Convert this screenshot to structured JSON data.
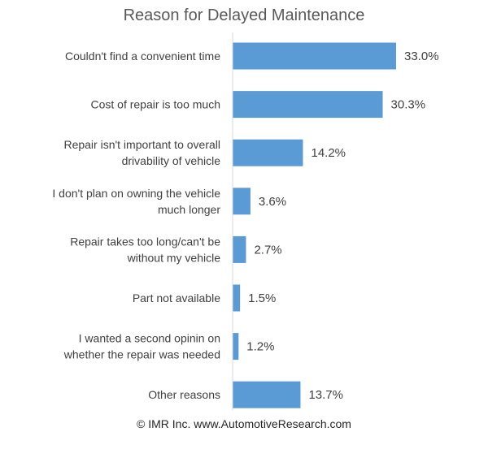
{
  "chart_data": {
    "type": "bar",
    "orientation": "horizontal",
    "title": "Reason for Delayed Maintenance",
    "categories": [
      "Couldn't find a convenient time",
      "Cost of repair is too much",
      "Repair isn't important to overall drivability of vehicle",
      "I don't plan on owning the vehicle much longer",
      "Repair takes too long/can't be without my vehicle",
      "Part not available",
      "I wanted a second opinin on whether the repair was needed",
      "Other reasons"
    ],
    "category_lines": [
      [
        "Couldn't find a convenient time"
      ],
      [
        "Cost of repair is too much"
      ],
      [
        "Repair isn't important to overall",
        "drivability of vehicle"
      ],
      [
        "I don't plan on owning the vehicle",
        "much longer"
      ],
      [
        "Repair takes too long/can't be",
        "without my vehicle"
      ],
      [
        "Part not available"
      ],
      [
        "I wanted a second opinin on",
        "whether the repair was needed"
      ],
      [
        "Other reasons"
      ]
    ],
    "values": [
      33.0,
      30.3,
      14.2,
      3.6,
      2.7,
      1.5,
      1.2,
      13.7
    ],
    "value_labels": [
      "33.0%",
      "30.3%",
      "14.2%",
      "3.6%",
      "2.7%",
      "1.5%",
      "1.2%",
      "13.7%"
    ],
    "xlim": [
      0,
      33.0
    ],
    "grid": false,
    "bar_color": "#5b9bd5"
  },
  "footer": "© IMR Inc. www.AutomotiveResearch.com"
}
